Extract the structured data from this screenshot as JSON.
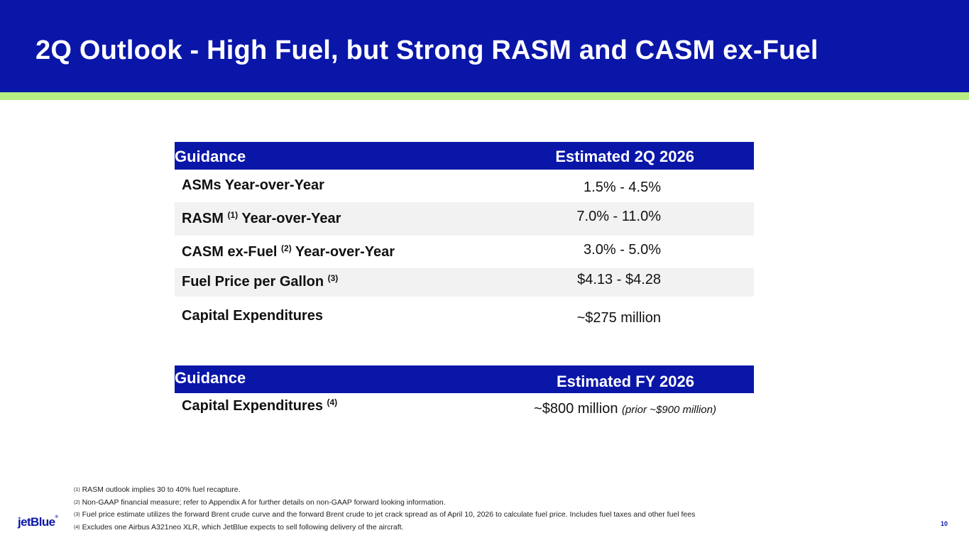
{
  "slide": {
    "title": "2Q Outlook - High Fuel, but Strong RASM and CASM ex-Fuel",
    "page_number": "10",
    "brand": "jetBlue"
  },
  "table_quarter": {
    "header_left": "Guidance",
    "header_right": "Estimated 2Q 2026",
    "rows": [
      {
        "label": "ASMs Year-over-Year",
        "value": "1.5% - 4.5%"
      },
      {
        "label_pre": "RASM",
        "note": "(1)",
        "label_post": "Year-over-Year",
        "value": "7.0% - 11.0%"
      },
      {
        "label_pre": "CASM ex-Fuel",
        "note": "(2)",
        "label_post": "Year-over-Year",
        "value": "3.0% - 5.0%"
      },
      {
        "label_pre": "Fuel Price per Gallon",
        "note": "(3)",
        "value": "$4.13 - $4.28"
      },
      {
        "label": "Capital Expenditures",
        "value": "~$275 million"
      }
    ]
  },
  "table_year": {
    "header_left": "Guidance",
    "header_right": "Estimated FY 2026",
    "row": {
      "label_pre": "Capital Expenditures",
      "note": "(4)",
      "value": "~$800 million",
      "value_note": "(prior ~$900 million)"
    }
  },
  "footnotes": [
    {
      "mark": "(1)",
      "text": "RASM outlook implies 30 to 40% fuel recapture."
    },
    {
      "mark": "(2)",
      "text": "Non-GAAP financial measure; refer to Appendix A for further details on non-GAAP forward looking information."
    },
    {
      "mark": "(3)",
      "text": "Fuel price estimate utilizes the forward Brent crude curve and the forward Brent crude to jet crack spread as of April 10, 2026 to calculate fuel price. Includes fuel taxes and other fuel fees"
    },
    {
      "mark": "(4)",
      "text": "Excludes one Airbus A321neo XLR, which JetBlue expects to sell following delivery of the aircraft."
    }
  ],
  "colors": {
    "header_blue": "#0a16a8",
    "accent_green": "#b7ee84",
    "row_shade": "#f2f2f2"
  }
}
